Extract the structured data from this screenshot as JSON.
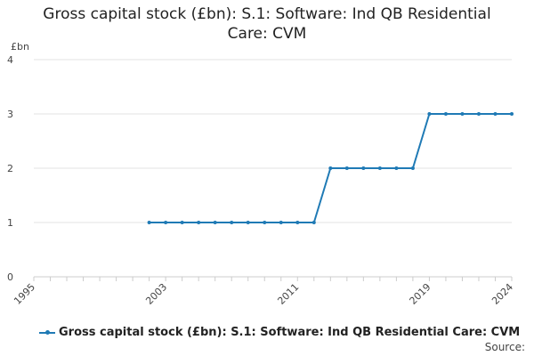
{
  "title_line1": "Gross capital stock (£bn): S.1: Software: Ind QB Residential",
  "title_line2": "Care: CVM",
  "source_label": "Source:",
  "colors": {
    "series": "#1f7ab5",
    "grid": "#e3e3e3",
    "axis": "#cccccc"
  },
  "chart_data": {
    "type": "line",
    "title": "Gross capital stock (£bn): S.1: Software: Ind QB Residential Care: CVM",
    "xlabel": "",
    "ylabel": "£bn",
    "xlim": [
      1995,
      2024
    ],
    "ylim": [
      0,
      4
    ],
    "y_ticks": [
      0,
      1,
      2,
      3,
      4
    ],
    "x_tick_labels": [
      "1995",
      "2003",
      "2011",
      "2019",
      "2024"
    ],
    "grid": true,
    "legend_position": "bottom",
    "series": [
      {
        "name": "Gross capital stock (£bn): S.1: Software: Ind QB Residential Care: CVM",
        "x": [
          2002,
          2003,
          2004,
          2005,
          2006,
          2007,
          2008,
          2009,
          2010,
          2011,
          2012,
          2013,
          2014,
          2015,
          2016,
          2017,
          2018,
          2019,
          2020,
          2021,
          2022,
          2023,
          2024
        ],
        "values": [
          1,
          1,
          1,
          1,
          1,
          1,
          1,
          1,
          1,
          1,
          1,
          2,
          2,
          2,
          2,
          2,
          2,
          3,
          3,
          3,
          3,
          3,
          3
        ]
      }
    ]
  }
}
